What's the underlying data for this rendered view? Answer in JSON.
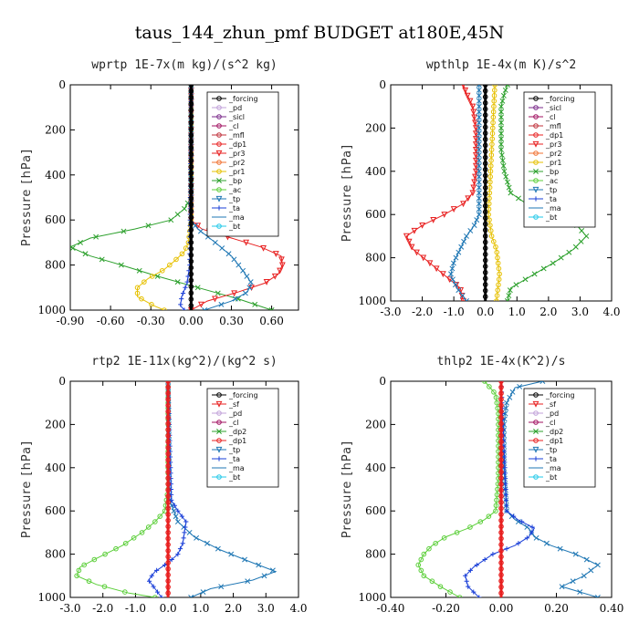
{
  "page_title": "taus_144_zhun_pmf  BUDGET at180E,45N",
  "chart_data": [
    {
      "type": "line",
      "title": "wprtp   1E-7x(m kg)/(s^2 kg)",
      "ylabel": "Pressure [hPa]",
      "xlim": [
        -0.9,
        0.8
      ],
      "ylim": [
        1000,
        0
      ],
      "xticks": [
        "-0.90",
        "-0.60",
        "-0.30",
        "0.00",
        "0.30",
        "0.60"
      ],
      "xtick_values": [
        -0.9,
        -0.6,
        -0.3,
        0.0,
        0.3,
        0.6
      ],
      "yticks": [
        "0",
        "200",
        "400",
        "600",
        "800",
        "1000"
      ],
      "ytick_values": [
        0,
        200,
        400,
        600,
        800,
        1000
      ],
      "legend": [
        "_forcing",
        "_pd",
        "_sicl",
        "_cl",
        "_mfl",
        "_dp1",
        "_pr3",
        "_pr2",
        "_pr1",
        "_bp",
        "_ac",
        "_tp",
        "_ta",
        "_ma",
        "_bt"
      ],
      "series": [
        {
          "name": "_bp",
          "color": "#2ca02c",
          "marker": "x",
          "p": [
            0,
            400,
            500,
            550,
            600,
            640,
            680,
            720,
            760,
            800,
            850,
            900,
            950,
            1000
          ],
          "v": [
            0.0,
            0.0,
            0.0,
            -0.05,
            -0.15,
            -0.42,
            -0.75,
            -0.9,
            -0.75,
            -0.52,
            -0.25,
            0.05,
            0.35,
            0.6
          ]
        },
        {
          "name": "_pr1",
          "color": "#e6c000",
          "marker": "o",
          "p": [
            0,
            600,
            700,
            740,
            780,
            820,
            860,
            900,
            940,
            980,
            1000
          ],
          "v": [
            0.0,
            0.0,
            -0.02,
            -0.05,
            -0.12,
            -0.2,
            -0.32,
            -0.4,
            -0.4,
            -0.28,
            -0.2
          ]
        },
        {
          "name": "_pr3",
          "color": "#e82020",
          "marker": "v",
          "p": [
            0,
            600,
            640,
            680,
            720,
            760,
            800,
            840,
            880,
            920,
            960,
            1000
          ],
          "v": [
            0.0,
            0.0,
            0.08,
            0.3,
            0.52,
            0.67,
            0.68,
            0.65,
            0.55,
            0.35,
            0.12,
            0.0
          ]
        },
        {
          "name": "_ma",
          "color": "#1f77b4",
          "marker": "x",
          "p": [
            0,
            600,
            640,
            700,
            760,
            820,
            880,
            920,
            960,
            1000
          ],
          "v": [
            0.0,
            0.0,
            0.05,
            0.18,
            0.3,
            0.38,
            0.45,
            0.42,
            0.3,
            0.1
          ]
        },
        {
          "name": "_ta",
          "color": "#1a3fd8",
          "marker": "+",
          "p": [
            0,
            800,
            880,
            940,
            980,
            1000
          ],
          "v": [
            0.0,
            -0.01,
            -0.03,
            -0.07,
            -0.08,
            -0.05
          ]
        },
        {
          "name": "_forcing",
          "color": "#000000",
          "marker": "o",
          "p": [
            0,
            100,
            200,
            300,
            400,
            500,
            600,
            700,
            800,
            900,
            1000
          ],
          "v": [
            0,
            0,
            0,
            0,
            0,
            0,
            0,
            0,
            0,
            0,
            0
          ]
        }
      ]
    },
    {
      "type": "line",
      "title": "wpthlp   1E-4x(m K)/s^2",
      "ylabel": "Pressure [hPa]",
      "xlim": [
        -3.0,
        4.0
      ],
      "ylim": [
        1000,
        0
      ],
      "xticks": [
        "-3.0",
        "-2.0",
        "-1.0",
        "0.0",
        "1.0",
        "2.0",
        "3.0",
        "4.0"
      ],
      "xtick_values": [
        -3.0,
        -2.0,
        -1.0,
        0.0,
        1.0,
        2.0,
        3.0,
        4.0
      ],
      "yticks": [
        "0",
        "200",
        "400",
        "600",
        "800",
        "1000"
      ],
      "ytick_values": [
        0,
        200,
        400,
        600,
        800,
        1000
      ],
      "legend": [
        "_forcing",
        "_sicl",
        "_cl",
        "_mfl",
        "_dp1",
        "_pr3",
        "_pr2",
        "_pr1",
        "_bp",
        "_ac",
        "_tp",
        "_ta",
        "_ma",
        "_bt"
      ],
      "series": [
        {
          "name": "_bp",
          "color": "#2ca02c",
          "marker": "x",
          "p": [
            0,
            40,
            100,
            200,
            300,
            400,
            500,
            550,
            600,
            650,
            700,
            760,
            820,
            880,
            940,
            1000
          ],
          "v": [
            0.7,
            0.6,
            0.5,
            0.5,
            0.5,
            0.6,
            0.8,
            1.3,
            2.3,
            2.9,
            3.2,
            2.8,
            2.2,
            1.5,
            0.8,
            0.7
          ]
        },
        {
          "name": "_pr3",
          "color": "#e82020",
          "marker": "v",
          "p": [
            0,
            40,
            100,
            200,
            300,
            400,
            500,
            550,
            600,
            650,
            700,
            760,
            820,
            880,
            940,
            1000
          ],
          "v": [
            -0.7,
            -0.6,
            -0.4,
            -0.3,
            -0.3,
            -0.3,
            -0.4,
            -0.7,
            -1.3,
            -2.0,
            -2.5,
            -2.3,
            -1.8,
            -1.3,
            -0.8,
            -0.7
          ]
        },
        {
          "name": "_ma",
          "color": "#1f77b4",
          "marker": "x",
          "p": [
            0,
            600,
            650,
            700,
            760,
            820,
            880,
            940,
            1000
          ],
          "v": [
            -0.2,
            -0.2,
            -0.35,
            -0.6,
            -0.8,
            -1.0,
            -1.1,
            -0.9,
            -0.6
          ]
        },
        {
          "name": "_pr1",
          "color": "#e6c000",
          "marker": "o",
          "p": [
            0,
            600,
            700,
            760,
            820,
            880,
            940,
            1000
          ],
          "v": [
            0.3,
            0.1,
            0.2,
            0.35,
            0.4,
            0.45,
            0.4,
            0.35
          ]
        },
        {
          "name": "_forcing",
          "color": "#000000",
          "marker": "o",
          "p": [
            0,
            100,
            200,
            300,
            400,
            500,
            600,
            700,
            800,
            900,
            1000
          ],
          "v": [
            0,
            0,
            0,
            0,
            0,
            0,
            0,
            0,
            0,
            0,
            0
          ]
        }
      ]
    },
    {
      "type": "line",
      "title": "rtp2   1E-11x(kg^2)/(kg^2 s)",
      "ylabel": "Pressure [hPa]",
      "xlim": [
        -3.0,
        4.0
      ],
      "ylim": [
        1000,
        0
      ],
      "xticks": [
        "-3.0",
        "-2.0",
        "-1.0",
        "0.0",
        "1.0",
        "2.0",
        "3.0",
        "4.0"
      ],
      "xtick_values": [
        -3.0,
        -2.0,
        -1.0,
        0.0,
        1.0,
        2.0,
        3.0,
        4.0
      ],
      "yticks": [
        "0",
        "200",
        "400",
        "600",
        "800",
        "1000"
      ],
      "ytick_values": [
        0,
        200,
        400,
        600,
        800,
        1000
      ],
      "legend": [
        "_forcing",
        "_sf",
        "_pd",
        "_cl",
        "_dp2",
        "_dp1",
        "_tp",
        "_ta",
        "_ma",
        "_bt"
      ],
      "series": [
        {
          "name": "_dp1",
          "color": "#5ccf3a",
          "marker": "o",
          "p": [
            0,
            500,
            600,
            650,
            700,
            760,
            820,
            860,
            900,
            940,
            980,
            1000
          ],
          "v": [
            0.0,
            0.0,
            -0.1,
            -0.4,
            -0.8,
            -1.4,
            -2.2,
            -2.7,
            -2.8,
            -2.2,
            -1.2,
            -0.4
          ]
        },
        {
          "name": "_ma",
          "color": "#1f77b4",
          "marker": "x",
          "p": [
            0,
            550,
            650,
            720,
            780,
            840,
            880,
            920,
            960,
            1000
          ],
          "v": [
            0.0,
            0.05,
            0.3,
            0.8,
            1.6,
            2.6,
            3.3,
            2.6,
            1.3,
            0.7
          ]
        },
        {
          "name": "_ta",
          "color": "#1a3fd8",
          "marker": "+",
          "p": [
            0,
            550,
            600,
            650,
            700,
            750,
            800,
            840,
            880,
            920,
            960,
            1000
          ],
          "v": [
            0.0,
            0.1,
            0.3,
            0.55,
            0.5,
            0.45,
            0.3,
            0.0,
            -0.4,
            -0.6,
            -0.4,
            -0.2
          ]
        },
        {
          "name": "_forcing",
          "color": "#e82020",
          "marker": "o",
          "p": [
            0,
            100,
            200,
            300,
            400,
            500,
            600,
            700,
            800,
            900,
            1000
          ],
          "v": [
            0,
            0,
            0,
            0,
            0,
            0,
            0,
            0,
            0,
            0,
            0
          ]
        }
      ]
    },
    {
      "type": "line",
      "title": "thlp2   1E-4x(K^2)/s",
      "ylabel": "Pressure [hPa]",
      "xlim": [
        -0.4,
        0.4
      ],
      "ylim": [
        1000,
        0
      ],
      "xticks": [
        "-0.40",
        "-0.20",
        "0.00",
        "0.20",
        "0.40"
      ],
      "xtick_values": [
        -0.4,
        -0.2,
        0.0,
        0.2,
        0.4
      ],
      "yticks": [
        "0",
        "200",
        "400",
        "600",
        "800",
        "1000"
      ],
      "ytick_values": [
        0,
        200,
        400,
        600,
        800,
        1000
      ],
      "legend": [
        "_forcing",
        "_sf",
        "_pd",
        "_cl",
        "_dp2",
        "_dp1",
        "_tp",
        "_ta",
        "_ma",
        "_bt"
      ],
      "series": [
        {
          "name": "_dp1",
          "color": "#5ccf3a",
          "marker": "o",
          "p": [
            0,
            60,
            150,
            300,
            450,
            600,
            640,
            680,
            720,
            760,
            800,
            850,
            900,
            950,
            1000
          ],
          "v": [
            -0.06,
            -0.02,
            -0.01,
            -0.01,
            -0.01,
            -0.02,
            -0.06,
            -0.12,
            -0.2,
            -0.25,
            -0.28,
            -0.3,
            -0.28,
            -0.22,
            -0.15
          ]
        },
        {
          "name": "_ma",
          "color": "#1f77b4",
          "marker": "x",
          "p": [
            0,
            30,
            100,
            200,
            400,
            600,
            640,
            680,
            720,
            760,
            800,
            850,
            900,
            950,
            1000
          ],
          "v": [
            0.15,
            0.05,
            0.02,
            0.01,
            0.01,
            0.02,
            0.05,
            0.1,
            0.12,
            0.18,
            0.27,
            0.35,
            0.3,
            0.22,
            0.35
          ]
        },
        {
          "name": "_ta",
          "color": "#1a3fd8",
          "marker": "+",
          "p": [
            0,
            600,
            640,
            680,
            720,
            760,
            800,
            860,
            900,
            950,
            1000
          ],
          "v": [
            0.0,
            0.02,
            0.06,
            0.12,
            0.1,
            0.05,
            -0.03,
            -0.1,
            -0.13,
            -0.12,
            -0.08
          ]
        },
        {
          "name": "_forcing",
          "color": "#e82020",
          "marker": "o",
          "p": [
            0,
            100,
            200,
            300,
            400,
            500,
            600,
            700,
            800,
            900,
            1000
          ],
          "v": [
            0,
            0,
            0,
            0,
            0,
            0,
            0,
            0,
            0,
            0,
            0
          ]
        }
      ]
    }
  ]
}
